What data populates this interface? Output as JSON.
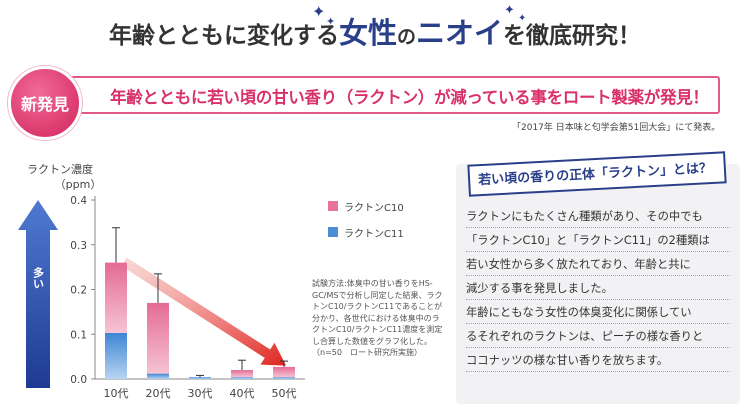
{
  "headline": {
    "part1": "年齢とともに変化する",
    "accent1": "女性",
    "small": "の",
    "accent2": "ニオイ",
    "part2": "を徹底研究！"
  },
  "badge": "新発見",
  "banner": "年齢とともに若い頃の甘い香り（ラクトン）が減っている事をロート製薬が発見！",
  "source": "「2017年 日本味と匂学会第51回大会」にて発表。",
  "arrow_label": "多い",
  "chart_data": {
    "type": "bar",
    "title": "",
    "xlabel": "",
    "ylabel": "ラクトン濃度",
    "yunit": "（ppm）",
    "ylim": [
      0,
      0.4
    ],
    "yticks": [
      "0.0",
      "0.1",
      "0.2",
      "0.3",
      "0.4"
    ],
    "categories": [
      "10代",
      "20代",
      "30代",
      "40代",
      "50代"
    ],
    "stacked": true,
    "series": [
      {
        "name": "ラクトンC11",
        "values": [
          0.103,
          0.012,
          0.004,
          0.004,
          0.004
        ],
        "color": "#4a8fd6"
      },
      {
        "name": "ラクトンC10",
        "values": [
          0.157,
          0.158,
          0.0,
          0.016,
          0.023
        ],
        "color": "#e8739a"
      }
    ],
    "totals": [
      0.26,
      0.17,
      0.004,
      0.02,
      0.027
    ],
    "errors": [
      0.078,
      0.065,
      0.004,
      0.022,
      0.013
    ],
    "grid": false,
    "trend_arrow_color": "#e0241f"
  },
  "legend": [
    "ラクトンC10",
    "ラクトンC11"
  ],
  "note": "試験方法:体臭中の甘い香りをHS-GC/MSで分析し同定した結果、ラクトンC10/ラクトンC11であることが分かり、各世代における体臭中のラクトンC10/ラクトンC11濃度を測定し合算した数値をグラフ化した。（n=50　ロート研究所実施）",
  "info": {
    "title": "若い頃の香りの正体「ラクトン」とは？",
    "lines": [
      "ラクトンにもたくさん種類があり、その中でも",
      "「ラクトンC10」と「ラクトンC11」の2種類は",
      "若い女性から多く放たれており、年齢と共に",
      "減少する事を発見しました。",
      "年齢にともなう女性の体臭変化に関係してい",
      "るそれぞれのラクトンは、ピーチの様な香りと",
      "ココナッツの様な甘い香りを放ちます。"
    ]
  }
}
